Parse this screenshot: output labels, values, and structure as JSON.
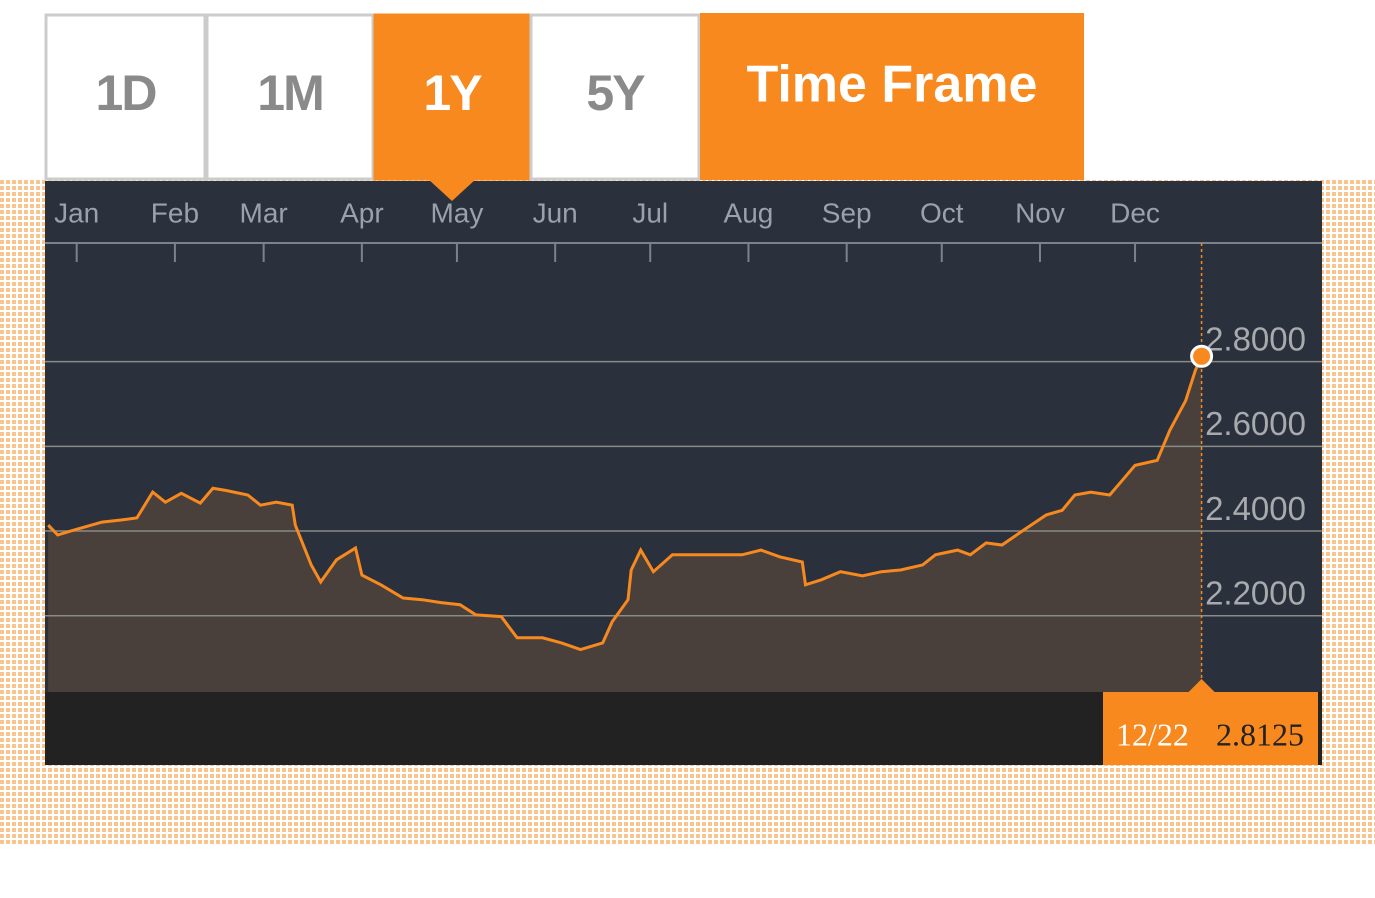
{
  "toolbar": {
    "buttons": [
      "1D",
      "1M",
      "1Y",
      "5Y"
    ],
    "selected": 2,
    "label": "Time Frame"
  },
  "chart_data": {
    "type": "line",
    "x": [
      -8,
      -5,
      0,
      9,
      15,
      20,
      25,
      29,
      34,
      40,
      44,
      48,
      55,
      59,
      64,
      69,
      70,
      75,
      78,
      83,
      89,
      91,
      97,
      104,
      110,
      116,
      122,
      127,
      135,
      140,
      148,
      154,
      160,
      167,
      170,
      175,
      176,
      179,
      183,
      189,
      198,
      211,
      217,
      223,
      230,
      231,
      236,
      242,
      249,
      255,
      261,
      268,
      272,
      279,
      283,
      288,
      293,
      299,
      307,
      312,
      316,
      321,
      327,
      331,
      335,
      342,
      346,
      351,
      354,
      356
    ],
    "series": [
      {
        "color": "#f7891f",
        "values": [
          2.414,
          2.391,
          2.402,
          2.421,
          2.426,
          2.431,
          2.492,
          2.468,
          2.489,
          2.466,
          2.501,
          2.496,
          2.485,
          2.461,
          2.468,
          2.461,
          2.414,
          2.32,
          2.28,
          2.332,
          2.36,
          2.296,
          2.273,
          2.242,
          2.238,
          2.231,
          2.226,
          2.202,
          2.198,
          2.148,
          2.148,
          2.136,
          2.12,
          2.136,
          2.186,
          2.238,
          2.308,
          2.355,
          2.304,
          2.344,
          2.344,
          2.344,
          2.355,
          2.339,
          2.327,
          2.273,
          2.285,
          2.304,
          2.294,
          2.304,
          2.308,
          2.32,
          2.344,
          2.355,
          2.344,
          2.372,
          2.367,
          2.398,
          2.438,
          2.449,
          2.485,
          2.492,
          2.485,
          2.52,
          2.555,
          2.567,
          2.638,
          2.708,
          2.779,
          2.8125
        ]
      }
    ],
    "xlim": [
      -9,
      394
    ],
    "xticks": [
      {
        "value": 1,
        "label": "Jan"
      },
      {
        "value": 32,
        "label": "Feb"
      },
      {
        "value": 60,
        "label": "Mar"
      },
      {
        "value": 91,
        "label": "Apr"
      },
      {
        "value": 121,
        "label": "May"
      },
      {
        "value": 152,
        "label": "Jun"
      },
      {
        "value": 182,
        "label": "Jul"
      },
      {
        "value": 213,
        "label": "Aug"
      },
      {
        "value": 244,
        "label": "Sep"
      },
      {
        "value": 274,
        "label": "Oct"
      },
      {
        "value": 305,
        "label": "Nov"
      },
      {
        "value": 335,
        "label": "Dec"
      }
    ],
    "ylim": [
      2.02,
      3.08
    ],
    "yticks": [
      {
        "value": 2.2,
        "label": "2.2000"
      },
      {
        "value": 2.4,
        "label": "2.4000"
      },
      {
        "value": 2.6,
        "label": "2.6000"
      },
      {
        "value": 2.8,
        "label": "2.8000"
      }
    ],
    "grid": true,
    "last_date": "12/22"
  }
}
